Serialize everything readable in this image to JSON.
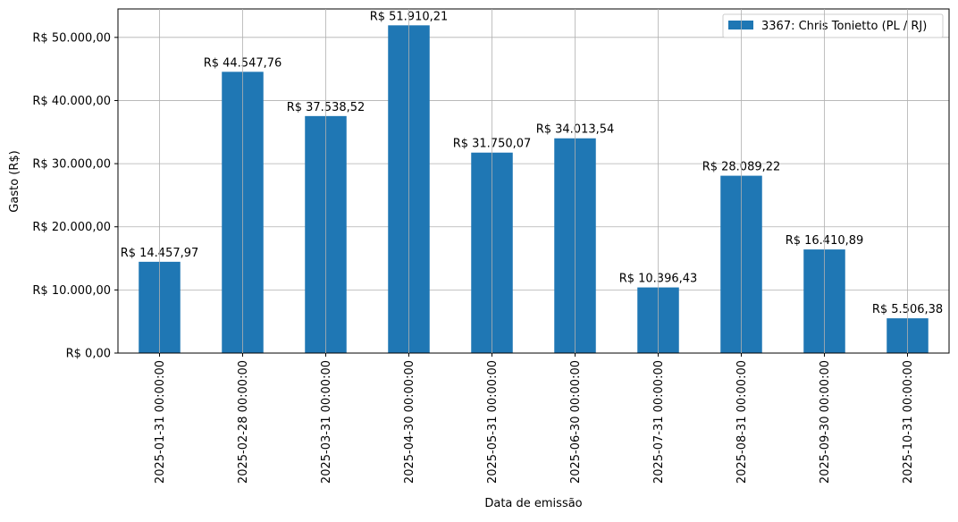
{
  "chart_data": {
    "type": "bar",
    "title": "",
    "xlabel": "Data de emissão",
    "ylabel": "Gasto (R$)",
    "ylim": [
      0,
      54505.72
    ],
    "grid": true,
    "legend_placement": "top-right",
    "bar_color": "#1f77b4",
    "categories": [
      "2025-01-31 00:00:00",
      "2025-02-28 00:00:00",
      "2025-03-31 00:00:00",
      "2025-04-30 00:00:00",
      "2025-05-31 00:00:00",
      "2025-06-30 00:00:00",
      "2025-07-31 00:00:00",
      "2025-08-31 00:00:00",
      "2025-09-30 00:00:00",
      "2025-10-31 00:00:00"
    ],
    "series": [
      {
        "name": "3367: Chris Tonietto (PL / RJ)",
        "values": [
          14457.97,
          44547.76,
          37538.52,
          51910.21,
          31750.07,
          34013.54,
          10396.43,
          28089.22,
          16410.89,
          5506.38
        ],
        "labels": [
          "R$ 14.457,97",
          "R$ 44.547,76",
          "R$ 37.538,52",
          "R$ 51.910,21",
          "R$ 31.750,07",
          "R$ 34.013,54",
          "R$ 10.396,43",
          "R$ 28.089,22",
          "R$ 16.410,89",
          "R$ 5.506,38"
        ]
      }
    ],
    "yticks": [
      0,
      10000,
      20000,
      30000,
      40000,
      50000
    ],
    "ytick_labels": [
      "R$ 0,00",
      "R$ 10.000,00",
      "R$ 20.000,00",
      "R$ 30.000,00",
      "R$ 40.000,00",
      "R$ 50.000,00"
    ]
  }
}
